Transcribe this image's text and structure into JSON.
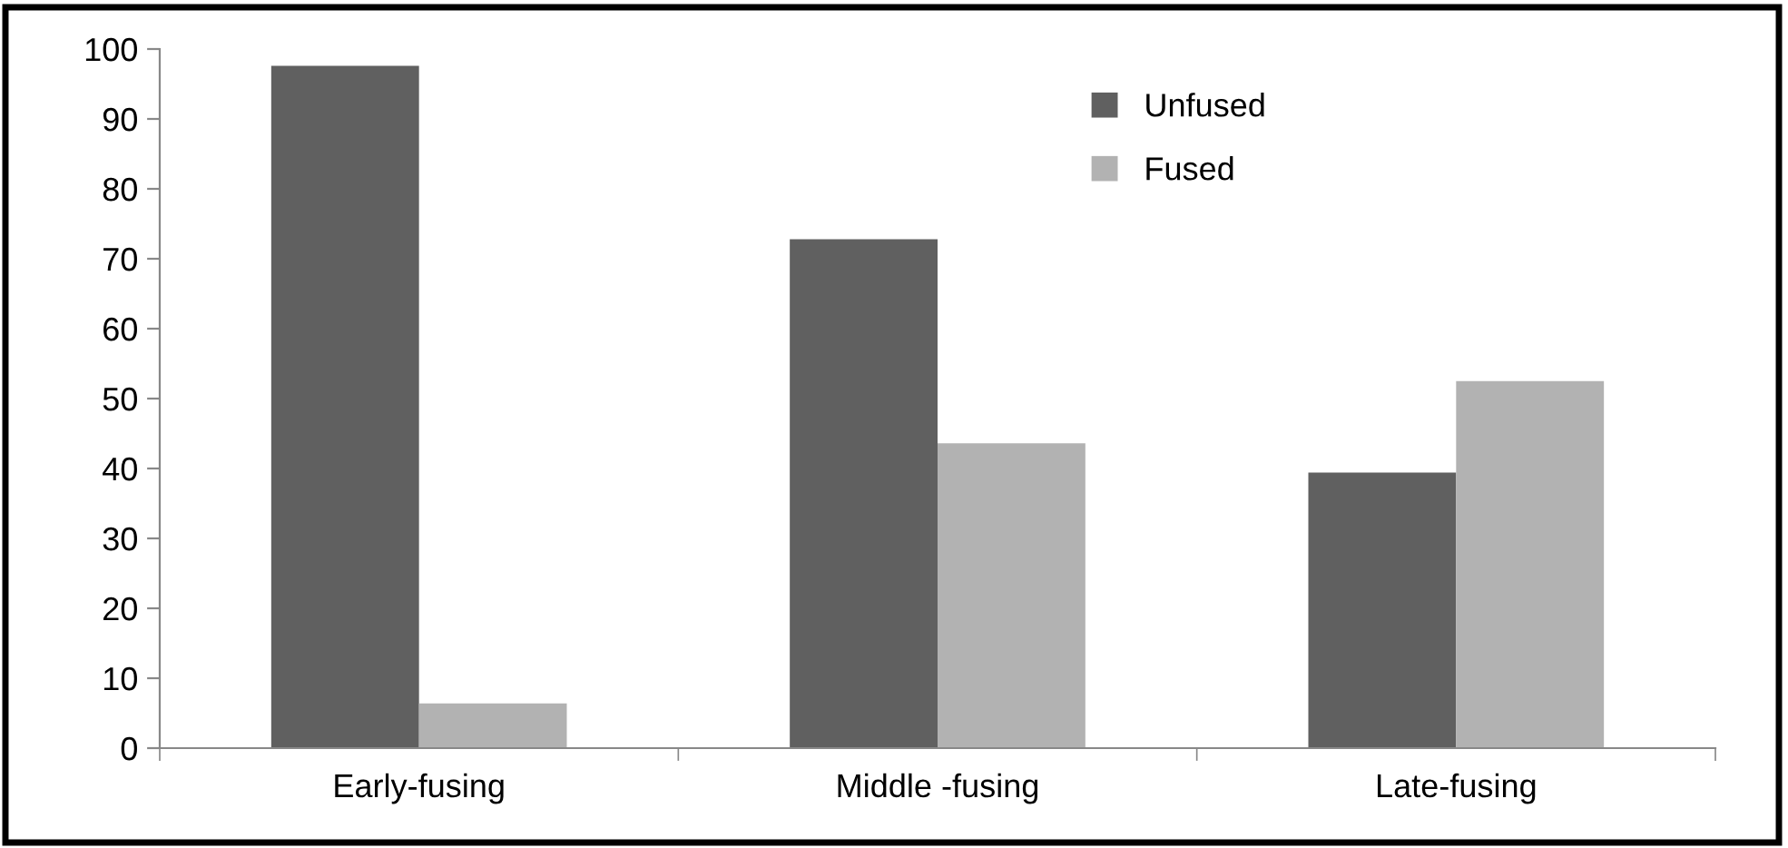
{
  "chart_data": {
    "type": "bar",
    "categories": [
      "Early-fusing",
      "Middle -fusing",
      "Late-fusing"
    ],
    "series": [
      {
        "name": "Unfused",
        "color": "#606060",
        "values": [
          97.6,
          72.8,
          39.4
        ]
      },
      {
        "name": "Fused",
        "color": "#b2b2b2",
        "values": [
          6.4,
          43.6,
          52.5
        ]
      }
    ],
    "ylim": [
      0,
      100
    ],
    "yticks": [
      0,
      10,
      20,
      30,
      40,
      50,
      60,
      70,
      80,
      90,
      100
    ],
    "grid": false,
    "legend": "top right"
  }
}
